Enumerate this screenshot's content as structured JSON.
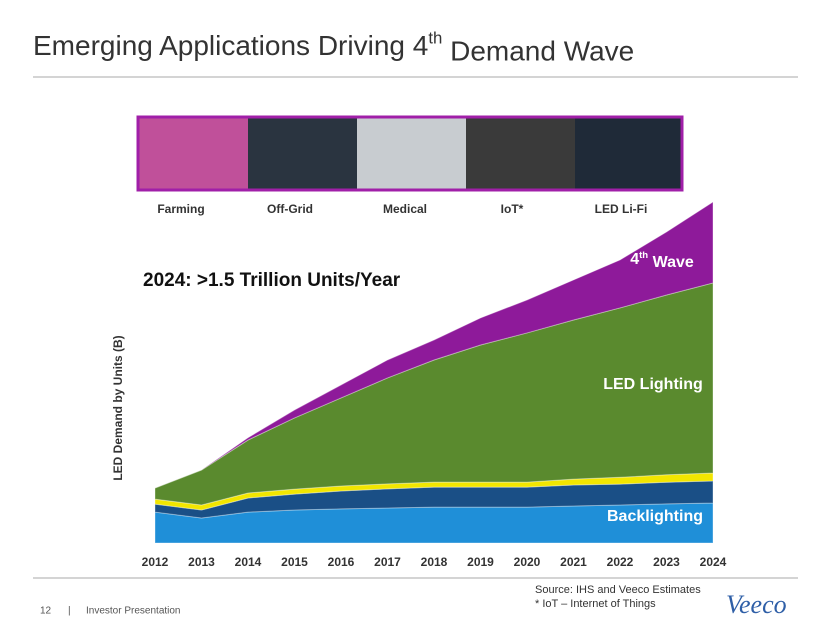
{
  "header": {
    "title": "Emerging Applications Driving 4th Demand Wave"
  },
  "images": {
    "labels": [
      "Farming",
      "Off-Grid",
      "Medical",
      "IoT*",
      "LED Li-Fi"
    ]
  },
  "chart_data": {
    "type": "area",
    "stacked": true,
    "annotation": "2024: >1.5 Trillion Units/Year",
    "y_label": "LED Demand by Units (B)",
    "categories": [
      "2012",
      "2013",
      "2014",
      "2015",
      "2016",
      "2017",
      "2018",
      "2019",
      "2020",
      "2021",
      "2022",
      "2023",
      "2024"
    ],
    "ylim": [
      0,
      1500
    ],
    "series": [
      {
        "name": "Backlighting",
        "color": "#1f8fd8",
        "values": [
          136,
          110,
          136,
          145,
          150,
          154,
          158,
          158,
          158,
          163,
          167,
          172,
          176
        ]
      },
      {
        "color": "#1a4f86",
        "values": [
          35,
          35,
          62,
          70,
          79,
          84,
          88,
          88,
          88,
          92,
          92,
          95,
          97
        ]
      },
      {
        "color": "#f2e600",
        "values": [
          22,
          22,
          22,
          22,
          22,
          22,
          22,
          22,
          22,
          26,
          30,
          33,
          35
        ]
      },
      {
        "name": "LED Lighting",
        "color": "#5a8a2e",
        "values": [
          49,
          154,
          233,
          313,
          387,
          466,
          537,
          603,
          656,
          700,
          745,
          791,
          836
        ]
      },
      {
        "name": "4th Wave",
        "color": "#8e1a9a",
        "values": [
          0,
          0,
          10,
          35,
          57,
          79,
          88,
          119,
          145,
          176,
          211,
          277,
          356
        ]
      }
    ]
  },
  "footer": {
    "source": "Source: IHS and Veeco Estimates",
    "note": "* IoT – Internet of Things",
    "page": "12",
    "separator": "|",
    "text": "Investor Presentation",
    "logo": "Veeco"
  }
}
